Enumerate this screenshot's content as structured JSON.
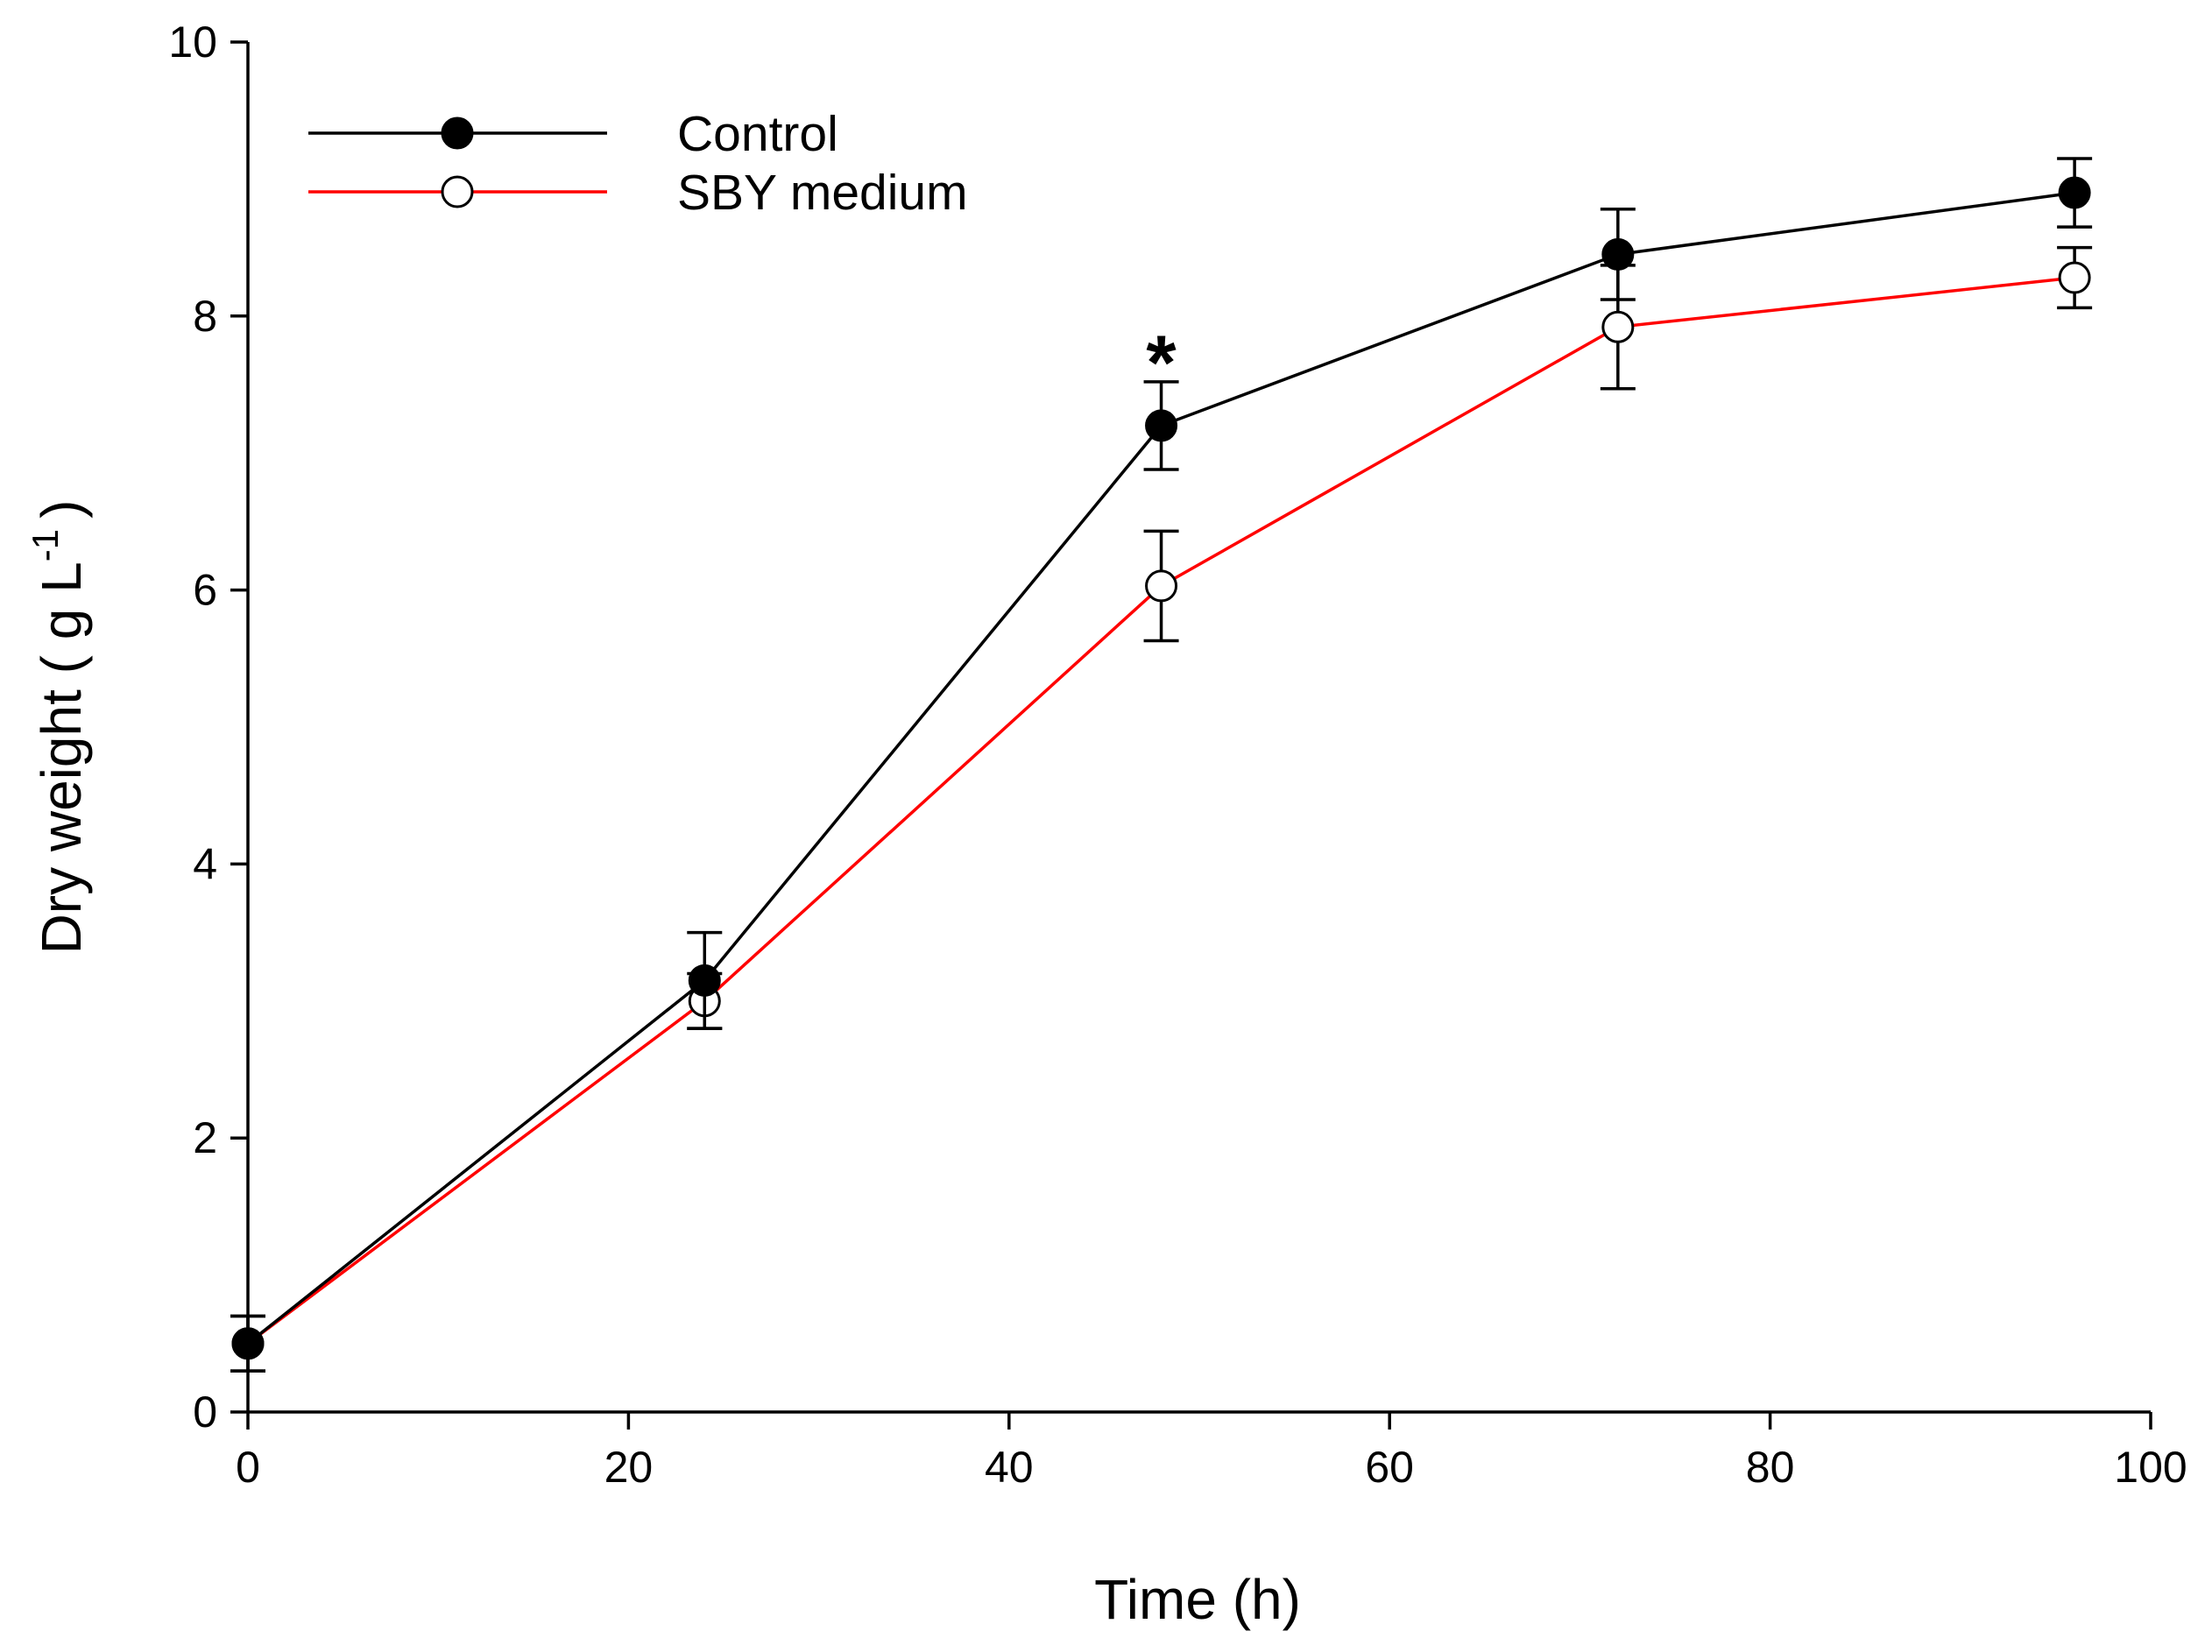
{
  "chart_data": {
    "type": "line",
    "title": "",
    "xlabel": "Time (h)",
    "ylabel": "Dry weight ( g L",
    "ylabel_superscript": "-1",
    "ylabel_close": ")",
    "xlim": [
      0,
      100
    ],
    "ylim": [
      0,
      10
    ],
    "x_ticks": [
      0,
      20,
      40,
      60,
      80,
      100
    ],
    "y_ticks": [
      0,
      2,
      4,
      6,
      8,
      10
    ],
    "x_tick_labels": [
      "0",
      "20",
      "40",
      "60",
      "80",
      "100"
    ],
    "y_tick_labels": [
      "0",
      "2",
      "4",
      "6",
      "8",
      "10"
    ],
    "grid": false,
    "legend_position": "top-left",
    "series": [
      {
        "name": "Control",
        "color": "#000000",
        "marker": "filled-circle",
        "x": [
          0,
          24,
          48,
          72,
          96
        ],
        "y": [
          0.5,
          3.15,
          7.2,
          8.45,
          8.9
        ],
        "error": [
          0.2,
          0.35,
          0.32,
          0.33,
          0.25
        ]
      },
      {
        "name": "SBY medium",
        "color": "#ff0000",
        "marker": "open-circle",
        "x": [
          0,
          24,
          48,
          72,
          96
        ],
        "y": [
          0.5,
          3.0,
          6.03,
          7.92,
          8.28
        ],
        "error": [
          0.2,
          0.2,
          0.4,
          0.45,
          0.22
        ]
      }
    ],
    "annotations": [
      {
        "text": "*",
        "x": 48,
        "y": 7.8
      }
    ]
  }
}
